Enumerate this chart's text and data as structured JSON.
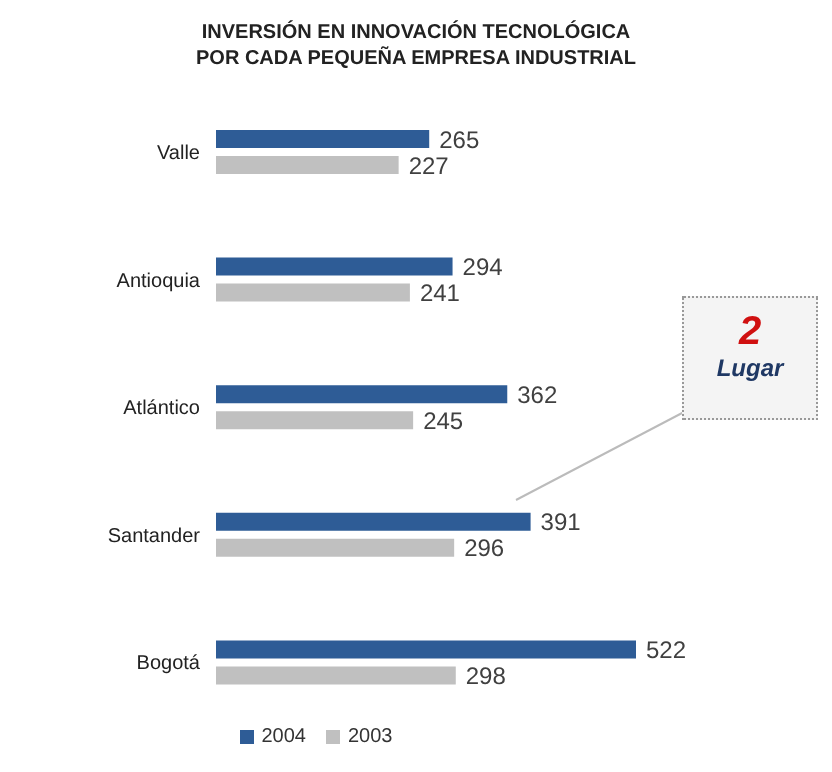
{
  "chart_data": {
    "type": "bar",
    "orientation": "horizontal",
    "title": "INVERSIÓN EN INNOVACIÓN TECNOLÓGICA POR CADA PEQUEÑA EMPRESA INDUSTRIAL",
    "categories": [
      "Valle",
      "Antioquia",
      "Atlántico",
      "Santander",
      "Bogotá"
    ],
    "series": [
      {
        "name": "2004",
        "color": "#2e5c96",
        "values": [
          265,
          294,
          362,
          391,
          522
        ]
      },
      {
        "name": "2003",
        "color": "#c0c0c0",
        "values": [
          227,
          241,
          245,
          296,
          298
        ]
      }
    ],
    "tick_labels": "y",
    "data_labels": true,
    "legend": "bottom",
    "grid": false,
    "annotations": [
      "2 Lugar"
    ]
  }
}
